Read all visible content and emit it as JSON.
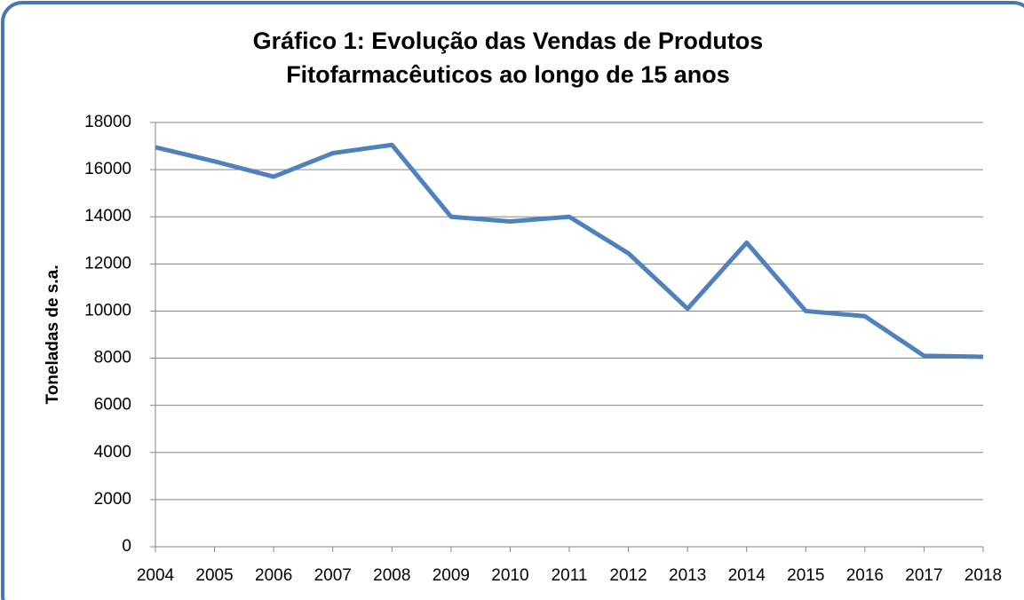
{
  "chart_data": {
    "type": "line",
    "title": [
      "Gráfico 1: Evolução das Vendas de Produtos",
      "Fitofarmacêuticos ao longo de 15 anos"
    ],
    "y_label": "Toneladas de s.a.",
    "categories": [
      "2004",
      "2005",
      "2006",
      "2007",
      "2008",
      "2009",
      "2010",
      "2011",
      "2012",
      "2013",
      "2014",
      "2015",
      "2016",
      "2017",
      "2018"
    ],
    "series": [
      {
        "name": "Toneladas de s.a.",
        "color": "#4f81bd",
        "values": [
          16950,
          16350,
          15700,
          16700,
          17050,
          14000,
          13800,
          14000,
          12450,
          10100,
          12900,
          10000,
          9780,
          8100,
          8060
        ]
      }
    ],
    "ylim": [
      0,
      18000
    ],
    "yticks": [
      0,
      2000,
      4000,
      6000,
      8000,
      10000,
      12000,
      14000,
      16000,
      18000
    ],
    "grid": true
  }
}
